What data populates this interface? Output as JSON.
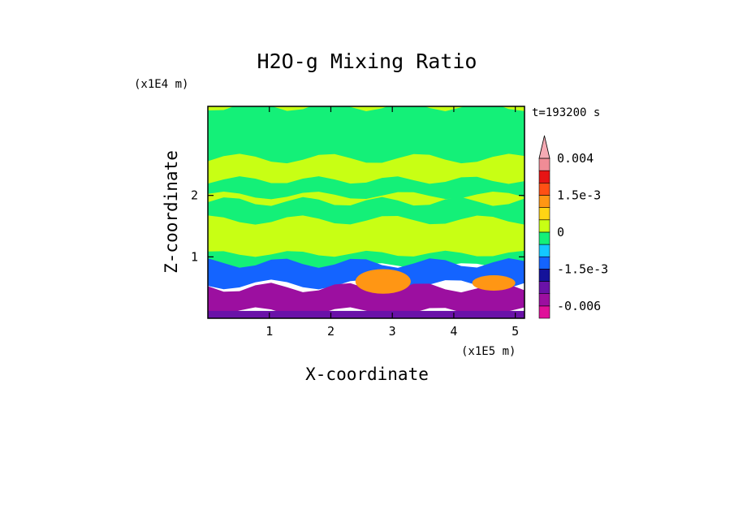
{
  "chart_data": {
    "type": "heatmap",
    "title": "H2O-g Mixing Ratio",
    "xlabel": "X-coordinate",
    "ylabel": "Z-coordinate",
    "x_scale_label": "(x1E5 m)",
    "y_scale_label": "(x1E4 m)",
    "time_label": "t=193200 s",
    "xlim": [
      0,
      5.15
    ],
    "ylim": [
      0,
      3.45
    ],
    "x_ticks": [
      1,
      2,
      3,
      4,
      5
    ],
    "x_tick_labels": [
      "1",
      "2",
      "3",
      "4",
      "5"
    ],
    "y_ticks": [
      1,
      2
    ],
    "y_tick_labels": [
      "1",
      "2"
    ],
    "colorbar": {
      "levels": [
        -0.0075,
        -0.006,
        -0.0045,
        -0.003,
        -0.0015,
        -0.001,
        -0.0005,
        0,
        0.0005,
        0.001,
        0.0015,
        0.002,
        0.003,
        0.004
      ],
      "colors": [
        "#e0109a",
        "#9c0fa0",
        "#6a12a8",
        "#14129a",
        "#1464ff",
        "#14c8ff",
        "#14f078",
        "#c8ff14",
        "#ffd414",
        "#ff9614",
        "#ff5014",
        "#e61414",
        "#f08c96",
        "#f5aab4"
      ],
      "tick_labels": [
        {
          "value": 0.004,
          "text": "0.004"
        },
        {
          "value": 0.0015,
          "text": "1.5e-3"
        },
        {
          "value": 0,
          "text": "0"
        },
        {
          "value": -0.0015,
          "text": "-1.5e-3"
        },
        {
          "value": -0.006,
          "text": "-0.006"
        }
      ],
      "extend": "max"
    },
    "field_regions": [
      {
        "value": 0.0002,
        "z_range": [
          0.9,
          3.45
        ],
        "note": "upper layer, mostly yellow"
      },
      {
        "value": -0.0003,
        "z_range": [
          2.6,
          3.45
        ],
        "note": "green band near top"
      },
      {
        "value": -0.0003,
        "z_range": [
          2.0,
          2.25
        ],
        "note": "green band near z=2"
      },
      {
        "value": -0.0003,
        "z_range": [
          1.6,
          1.9
        ],
        "note": "green band"
      },
      {
        "value": -0.0003,
        "z_range": [
          0.85,
          1.05
        ],
        "note": "green band above boundary layer"
      },
      {
        "value": -0.0012,
        "z_range": [
          0.55,
          0.9
        ],
        "note": "cyan/blue swirls"
      },
      {
        "value": -0.0045,
        "z_range": [
          0.1,
          0.5
        ],
        "note": "purple lower layer"
      },
      {
        "value": 0.0012,
        "z_range": [
          0.4,
          0.8
        ],
        "x_range": [
          2.4,
          3.3
        ],
        "note": "orange patch"
      },
      {
        "value": 0.0012,
        "z_range": [
          0.45,
          0.7
        ],
        "x_range": [
          4.3,
          5.0
        ],
        "note": "orange patch"
      }
    ]
  }
}
